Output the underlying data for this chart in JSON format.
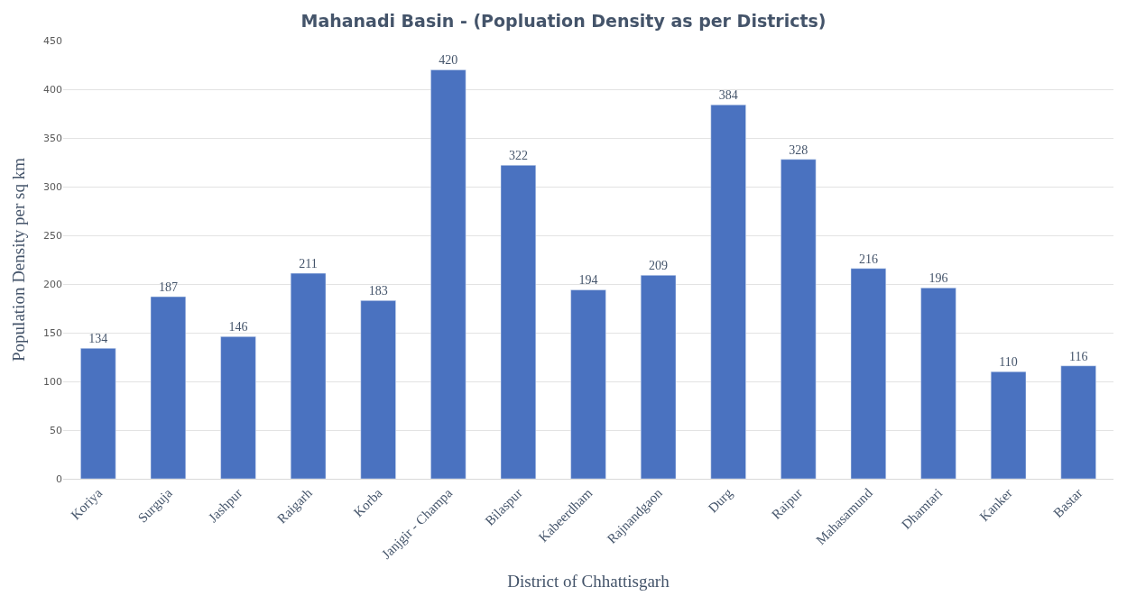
{
  "chart_data": {
    "type": "bar",
    "title": "Mahanadi Basin - (Popluation Density as per Districts)",
    "xlabel": "District of Chhattisgarh",
    "ylabel": "Population Density per sq km",
    "categories": [
      "Koriya",
      "Surguja",
      "Jashpur",
      "Raigarh",
      "Korba",
      "Janjgir - Champa",
      "Bilaspur",
      "Kabeerdham",
      "Rajnandgaon",
      "Durg",
      "Raipur",
      "Mahasamund",
      "Dhamtari",
      "Kanker",
      "Bastar"
    ],
    "values": [
      134,
      187,
      146,
      211,
      183,
      420,
      322,
      194,
      209,
      384,
      328,
      216,
      196,
      110,
      116
    ],
    "color": "#4a72c0",
    "ylim": [
      0,
      450
    ],
    "yticks": [
      0,
      50,
      100,
      150,
      200,
      250,
      300,
      350,
      400,
      450
    ],
    "grid": "y",
    "data_labels": true
  }
}
